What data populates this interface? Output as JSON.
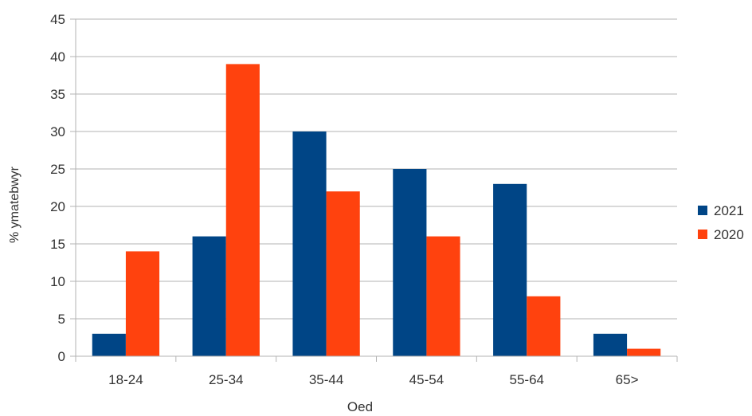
{
  "chart_data": {
    "type": "bar",
    "title": "",
    "xlabel": "Oed",
    "ylabel": "% ymatebwyr",
    "categories": [
      "18-24",
      "25-34",
      "35-44",
      "45-54",
      "55-64",
      "65>"
    ],
    "series": [
      {
        "name": "2021",
        "color": "#004586",
        "values": [
          3,
          16,
          30,
          25,
          23,
          3
        ]
      },
      {
        "name": "2020",
        "color": "#ff420e",
        "values": [
          14,
          39,
          22,
          16,
          8,
          1
        ]
      }
    ],
    "ylim": [
      0,
      45
    ],
    "yticks": [
      0,
      5,
      10,
      15,
      20,
      25,
      30,
      35,
      40,
      45
    ],
    "grid": true,
    "legend_position": "right"
  }
}
